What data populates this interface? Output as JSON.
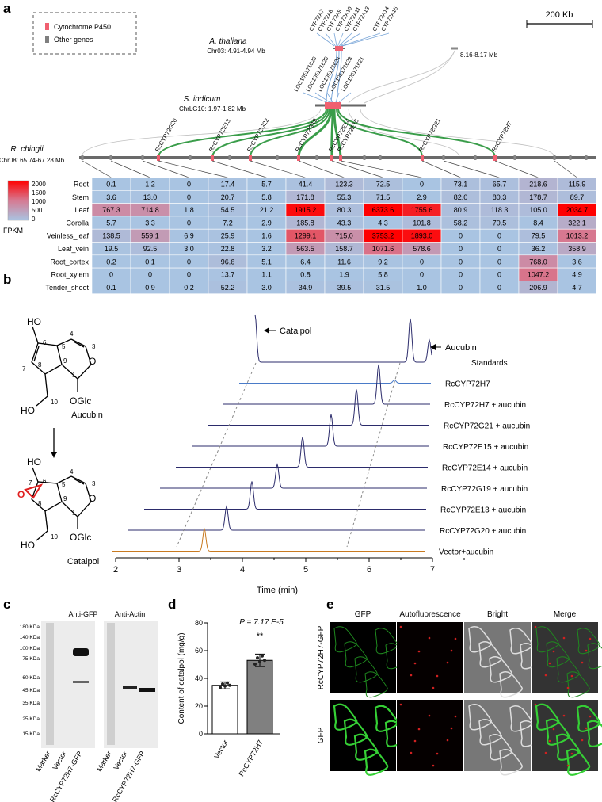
{
  "panel_labels": {
    "a": "a",
    "b": "b",
    "c": "c",
    "d": "d",
    "e": "e"
  },
  "panel_a": {
    "legend": {
      "cyp_label": "Cytochrome P450",
      "other_label": "Other genes",
      "cyp_color": "#f06070",
      "other_color": "#7f7f7f"
    },
    "scalebar_label": "200 Kb",
    "at_species": "A. thaliana",
    "at_region": "Chr03: 4.91-4.94 Mb",
    "at_side_label": "8.16-8.17 Mb",
    "si_species": "S. indicum",
    "si_region": "ChrLG10: 1.97-1.82 Mb",
    "rc_species": "R. chingii",
    "rc_region": "Chr08: 65.74-67.28 Mb",
    "at_genes": [
      "CYP72A7",
      "CYP72A8",
      "CYP72A9",
      "CYP72A10",
      "CYP72A11",
      "CYP72A13",
      "CYP72A14",
      "CYP72A15"
    ],
    "si_genes": [
      "LOC105171626",
      "LOC105171625",
      "LOC105171624",
      "LOC105171623",
      "LOC105171621"
    ],
    "rc_genes": [
      "RcCYP72G20",
      "RcCYP72E13",
      "RcCYP72G22",
      "RcCYP72G19",
      "RcCYP72E14",
      "RcCYP72E15",
      "RcCYP72G21",
      "RcCYP72H7"
    ],
    "heatmap_colorbar": {
      "ticks": [
        "2000",
        "1500",
        "1000",
        "500",
        "0"
      ],
      "unit": "FPKM"
    },
    "heatmap": {
      "rows": [
        "Root",
        "Stem",
        "Leaf",
        "Corolla",
        "Veinless_leaf",
        "Leaf_vein",
        "Root_cortex",
        "Root_xylem",
        "Tender_shoot"
      ],
      "values": [
        [
          "0.1",
          "1.2",
          "0",
          "17.4",
          "5.7",
          "41.4",
          "123.3",
          "72.5",
          "0",
          "73.1",
          "65.7",
          "218.6",
          "115.9"
        ],
        [
          "3.6",
          "13.0",
          "0",
          "20.7",
          "5.8",
          "171.8",
          "55.3",
          "71.5",
          "2.9",
          "82.0",
          "80.3",
          "178.7",
          "89.7"
        ],
        [
          "767.3",
          "714.8",
          "1.8",
          "54.5",
          "21.2",
          "1915.2",
          "80.3",
          "6373.6",
          "1755.6",
          "80.9",
          "118.3",
          "105.0",
          "2034.7"
        ],
        [
          "5.7",
          "3.3",
          "0",
          "7.2",
          "2.9",
          "185.8",
          "43.3",
          "4.3",
          "101.8",
          "58.2",
          "70.5",
          "8.4",
          "322.1"
        ],
        [
          "138.5",
          "559.1",
          "6.9",
          "25.9",
          "1.6",
          "1299.1",
          "715.0",
          "3753.2",
          "1893.0",
          "0",
          "0",
          "79.5",
          "1013.2"
        ],
        [
          "19.5",
          "92.5",
          "3.0",
          "22.8",
          "3.2",
          "563.5",
          "158.7",
          "1071.6",
          "578.6",
          "0",
          "0",
          "36.2",
          "358.9"
        ],
        [
          "0.2",
          "0.1",
          "0",
          "96.6",
          "5.1",
          "6.4",
          "11.6",
          "9.2",
          "0",
          "0",
          "0",
          "768.0",
          "3.6"
        ],
        [
          "0",
          "0",
          "0",
          "13.7",
          "1.1",
          "0.8",
          "1.9",
          "5.8",
          "0",
          "0",
          "0",
          "1047.2",
          "4.9"
        ],
        [
          "0.1",
          "0.9",
          "0.2",
          "52.2",
          "3.0",
          "34.9",
          "39.5",
          "31.5",
          "1.0",
          "0",
          "0",
          "206.9",
          "4.7"
        ]
      ]
    }
  },
  "panel_b": {
    "aucubin_label": "Aucubin",
    "catalpol_label": "Catalpol",
    "catalpol_arrow_label": "Catalpol",
    "aucubin_arrow_label": "Aucubin",
    "glc_label": "OGlc",
    "ho_label": "HO",
    "o_label": "O",
    "traces": [
      "Standards",
      "RcCYP72H7",
      "RcCYP72H7 + aucubin",
      "RcCYP72G21 + aucubin",
      "RcCYP72E15 + aucubin",
      "RcCYP72E14 + aucubin",
      "RcCYP72G19 + aucubin",
      "RcCYP72E13 + aucubin",
      "RcCYP72G20 + aucubin",
      "Vector+aucubin"
    ],
    "x_ticks": [
      "2",
      "3",
      "4",
      "5",
      "6",
      "7"
    ],
    "x_label": "Time (min)"
  },
  "panel_c": {
    "anti_gfp": "Anti-GFP",
    "anti_actin": "Anti-Actin",
    "kda_labels": [
      "180 KDa",
      "140 KDa",
      "100 KDa",
      "75 KDa",
      "60 KDa",
      "45 KDa",
      "35 KDa",
      "25 KDa",
      "15 KDa"
    ],
    "lanes": [
      "Marker",
      "Vector",
      "RcCYP72H7-GFP"
    ]
  },
  "panel_d": {
    "chart_data": {
      "type": "bar",
      "categories": [
        "Vector",
        "RcCYP72H7"
      ],
      "values": [
        35,
        53
      ],
      "errors": [
        2.5,
        4.5
      ],
      "ylabel": "Content of catalpol (mg/g)",
      "ylim": [
        0,
        80
      ],
      "yticks": [
        "0",
        "20",
        "40",
        "60",
        "80"
      ],
      "p_label": "P = 7.17 E-5",
      "sig": "**",
      "colors": [
        "#ffffff",
        "#808080"
      ]
    }
  },
  "panel_e": {
    "columns": [
      "GFP",
      "Autofluorescence",
      "Bright",
      "Merge"
    ],
    "rows": [
      "RcCYP72H7-GFP",
      "GFP"
    ]
  }
}
